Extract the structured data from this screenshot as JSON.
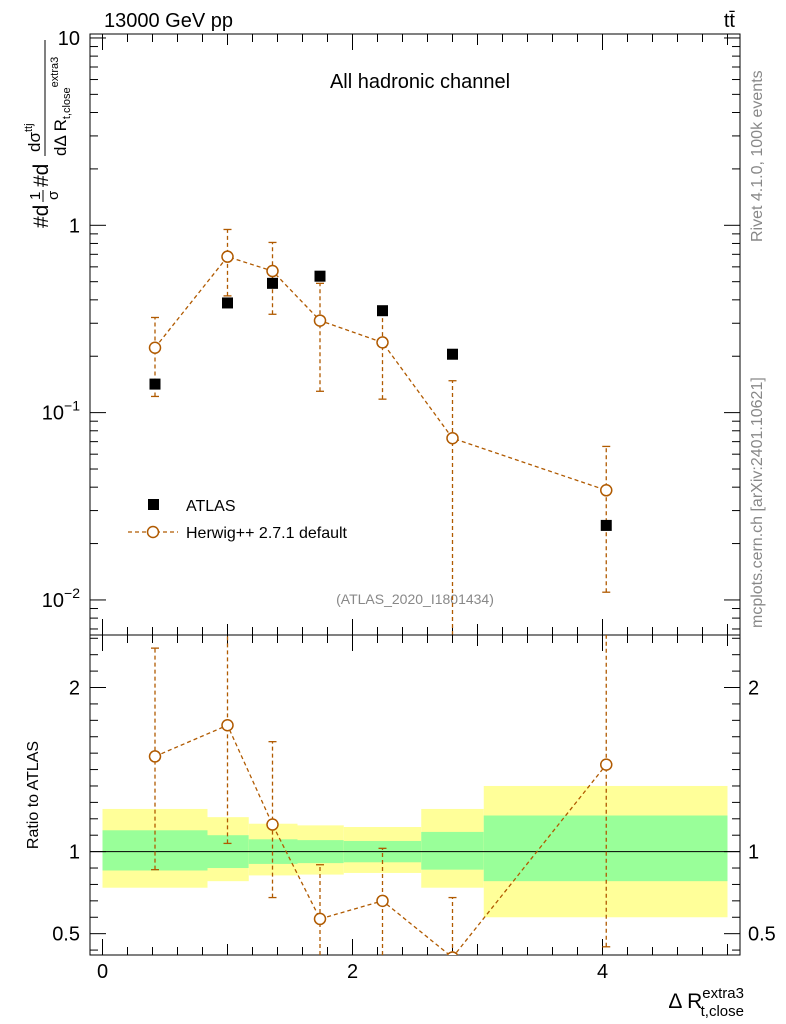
{
  "header": {
    "left": "13000 GeV pp",
    "right": "tt̄"
  },
  "side": {
    "rivet": "Rivet 4.1.0,  100k events",
    "mcplots": "mcplots.cern.ch [arXiv:2401.10621]"
  },
  "chart_data": [
    {
      "type": "scatter",
      "title": "All hadronic channel",
      "yscale": "log",
      "ylim": [
        0.0065,
        10.5
      ],
      "xlim": [
        -0.1,
        5.1
      ],
      "yticks": [
        {
          "v": 10,
          "base": "10",
          "exp": ""
        },
        {
          "v": 1,
          "base": "1",
          "exp": ""
        },
        {
          "v": 0.1,
          "base": "10",
          "exp": "−1"
        },
        {
          "v": 0.01,
          "base": "10",
          "exp": "−2"
        }
      ],
      "ylabel": {
        "l1": "#d",
        "f1": "1",
        "f2": "σ",
        "l2": "#d",
        "dnum": "dσ",
        "dnum_sup": "ttj",
        "dden": "dΔ R",
        "dden_sub": "t,close",
        "dden_sup": "extra3"
      },
      "annotation": "(ATLAS_2020_I1801434)",
      "legend": [
        "ATLAS",
        "Herwig++ 2.7.1 default"
      ],
      "atlas": [
        {
          "x": 0.42,
          "y": 0.142
        },
        {
          "x": 1.0,
          "y": 0.385
        },
        {
          "x": 1.36,
          "y": 0.49
        },
        {
          "x": 1.74,
          "y": 0.535
        },
        {
          "x": 2.24,
          "y": 0.35
        },
        {
          "x": 2.8,
          "y": 0.205
        },
        {
          "x": 4.03,
          "y": 0.025
        }
      ],
      "herwig": [
        {
          "x": 0.42,
          "y": 0.222,
          "lo": 0.122,
          "hi": 0.322
        },
        {
          "x": 1.0,
          "y": 0.68,
          "lo": 0.42,
          "hi": 0.95
        },
        {
          "x": 1.36,
          "y": 0.57,
          "lo": 0.335,
          "hi": 0.81
        },
        {
          "x": 1.74,
          "y": 0.31,
          "lo": 0.13,
          "hi": 0.49
        },
        {
          "x": 2.24,
          "y": 0.237,
          "lo": 0.118,
          "hi": 0.357
        },
        {
          "x": 2.8,
          "y": 0.073,
          "lo": 0.001,
          "hi": 0.148
        },
        {
          "x": 4.03,
          "y": 0.0385,
          "lo": 0.011,
          "hi": 0.066
        }
      ]
    },
    {
      "type": "scatter",
      "ylabel": "Ratio to ATLAS",
      "xlabel": {
        "base": "Δ R",
        "sup": "extra3",
        "sub": "t,close"
      },
      "ylim": [
        0.37,
        2.32
      ],
      "xlim": [
        -0.1,
        5.1
      ],
      "xticks": [
        0,
        2,
        4
      ],
      "yticks": [
        {
          "v": 2,
          "label": "2"
        },
        {
          "v": 1,
          "label": "1"
        },
        {
          "v": 0.5,
          "label": "0.5"
        }
      ],
      "bands": [
        {
          "x0": 0.0,
          "x1": 0.84,
          "in_lo": 0.885,
          "in_hi": 1.13,
          "out_lo": 0.78,
          "out_hi": 1.26
        },
        {
          "x0": 0.84,
          "x1": 1.17,
          "in_lo": 0.9,
          "in_hi": 1.1,
          "out_lo": 0.82,
          "out_hi": 1.21
        },
        {
          "x0": 1.17,
          "x1": 1.56,
          "in_lo": 0.925,
          "in_hi": 1.075,
          "out_lo": 0.855,
          "out_hi": 1.17
        },
        {
          "x0": 1.56,
          "x1": 1.93,
          "in_lo": 0.93,
          "in_hi": 1.07,
          "out_lo": 0.86,
          "out_hi": 1.16
        },
        {
          "x0": 1.93,
          "x1": 2.55,
          "in_lo": 0.935,
          "in_hi": 1.065,
          "out_lo": 0.87,
          "out_hi": 1.15
        },
        {
          "x0": 2.55,
          "x1": 3.05,
          "in_lo": 0.89,
          "in_hi": 1.12,
          "out_lo": 0.78,
          "out_hi": 1.26
        },
        {
          "x0": 3.05,
          "x1": 5.0,
          "in_lo": 0.82,
          "in_hi": 1.22,
          "out_lo": 0.6,
          "out_hi": 1.4
        }
      ],
      "herwig": [
        {
          "x": 0.42,
          "y": 1.58,
          "lo": 0.89,
          "hi": 2.24
        },
        {
          "x": 1.0,
          "y": 1.77,
          "lo": 1.05,
          "hi": 2.35
        },
        {
          "x": 1.36,
          "y": 1.165,
          "lo": 0.72,
          "hi": 1.67
        },
        {
          "x": 1.74,
          "y": 0.59,
          "lo": 0.3,
          "hi": 0.92
        },
        {
          "x": 2.24,
          "y": 0.7,
          "lo": 0.3,
          "hi": 1.02
        },
        {
          "x": 2.8,
          "y": 0.355,
          "lo": 0.3,
          "hi": 0.72
        },
        {
          "x": 4.03,
          "y": 1.53,
          "lo": 0.42,
          "hi": 2.4
        }
      ]
    }
  ]
}
